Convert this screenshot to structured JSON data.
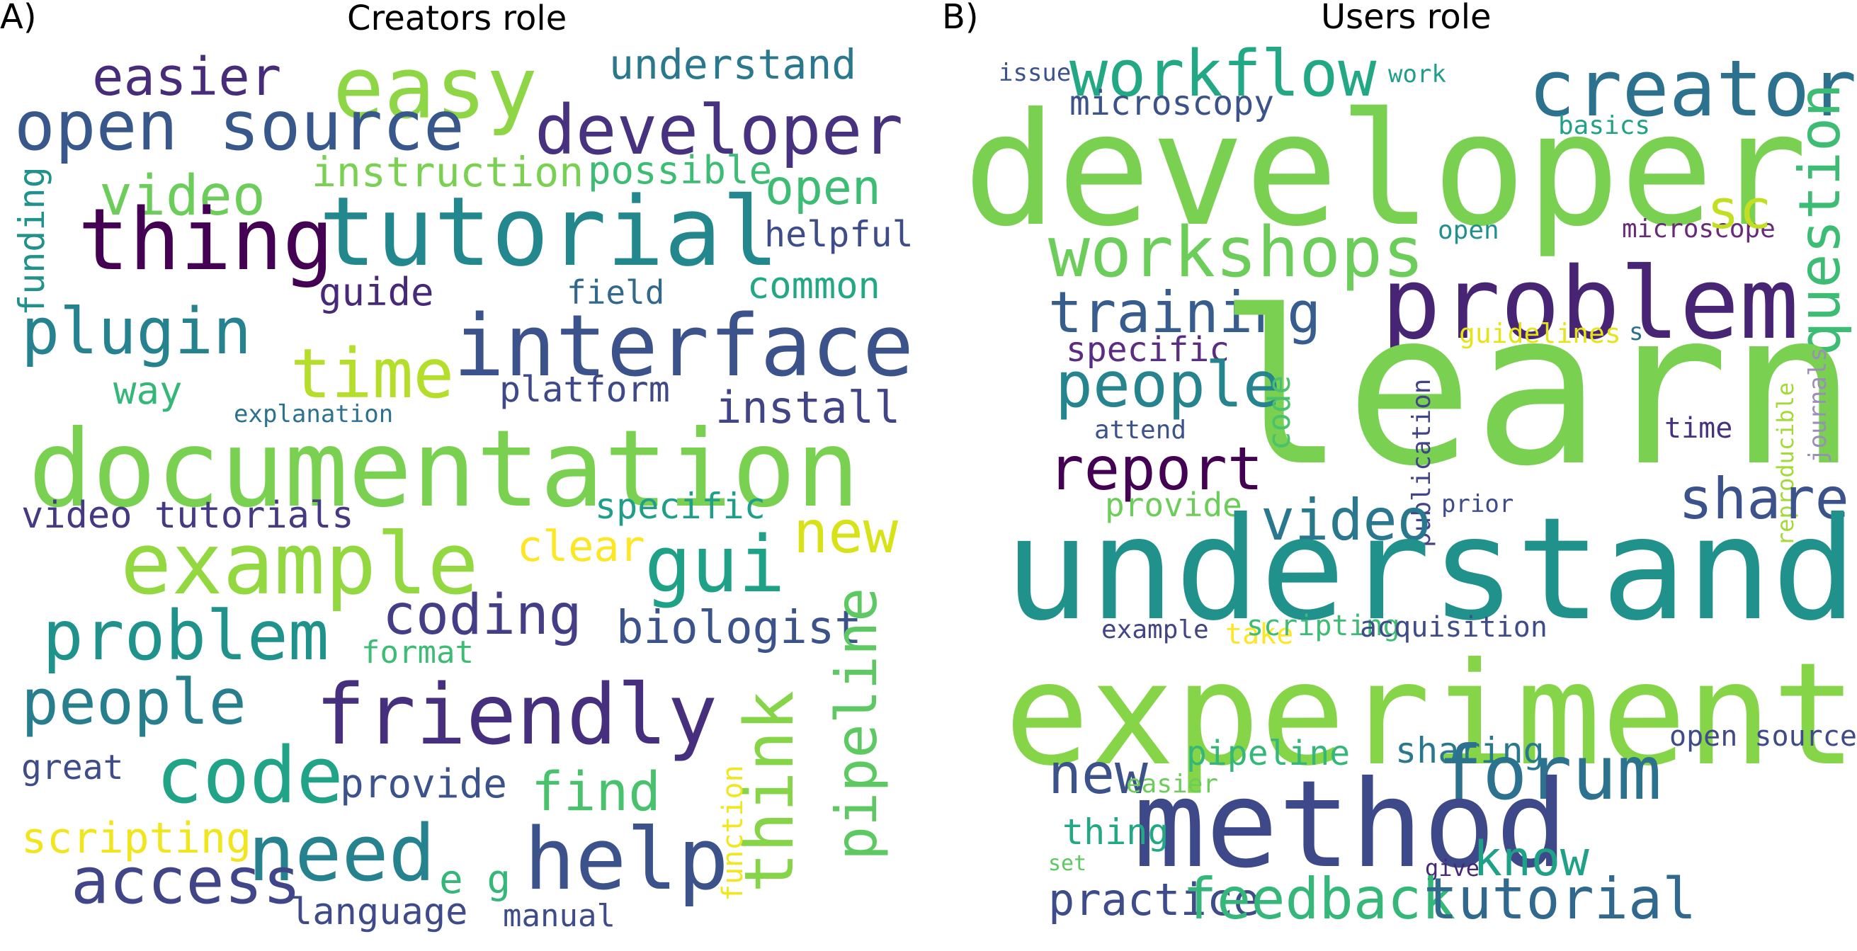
{
  "figure": {
    "panels": [
      {
        "label": "A)",
        "title": "Creators role",
        "words": [
          {
            "text": "easy",
            "color": "#8ed645"
          },
          {
            "text": "easier",
            "color": "#472c7a"
          },
          {
            "text": "understand",
            "color": "#2a788e"
          },
          {
            "text": "open source",
            "color": "#38588c"
          },
          {
            "text": "developer",
            "color": "#46327e"
          },
          {
            "text": "funding",
            "color": "#21918c"
          },
          {
            "text": "instruction",
            "color": "#7ad151"
          },
          {
            "text": "possible",
            "color": "#3dbc74"
          },
          {
            "text": "video",
            "color": "#6ccd5a"
          },
          {
            "text": "open",
            "color": "#3dbc74"
          },
          {
            "text": "thing",
            "color": "#440154"
          },
          {
            "text": "tutorial",
            "color": "#23888e"
          },
          {
            "text": "helpful",
            "color": "#3e4c8a"
          },
          {
            "text": "field",
            "color": "#31688e"
          },
          {
            "text": "common",
            "color": "#22a884"
          },
          {
            "text": "guide",
            "color": "#482878"
          },
          {
            "text": "plugin",
            "color": "#26828e"
          },
          {
            "text": "interface",
            "color": "#3b528b"
          },
          {
            "text": "time",
            "color": "#b5de2b"
          },
          {
            "text": "way",
            "color": "#35b779"
          },
          {
            "text": "platform",
            "color": "#3e4989"
          },
          {
            "text": "install",
            "color": "#414487"
          },
          {
            "text": "explanation",
            "color": "#2c728e"
          },
          {
            "text": "documentation",
            "color": "#7ad151"
          },
          {
            "text": "video tutorials",
            "color": "#443983"
          },
          {
            "text": "specific",
            "color": "#1f9e89"
          },
          {
            "text": "new",
            "color": "#d8e219"
          },
          {
            "text": "example",
            "color": "#93d741"
          },
          {
            "text": "clear",
            "color": "#fde725"
          },
          {
            "text": "gui",
            "color": "#1fa187"
          },
          {
            "text": "problem",
            "color": "#20928c"
          },
          {
            "text": "coding",
            "color": "#433e85"
          },
          {
            "text": "biologist",
            "color": "#3b528b"
          },
          {
            "text": "pipeline",
            "color": "#5ec962"
          },
          {
            "text": "format",
            "color": "#3dbc74"
          },
          {
            "text": "people",
            "color": "#277f8e"
          },
          {
            "text": "friendly",
            "color": "#46307e"
          },
          {
            "text": "think",
            "color": "#86d549"
          },
          {
            "text": "function",
            "color": "#f4e61e"
          },
          {
            "text": "code",
            "color": "#20a386"
          },
          {
            "text": "provide",
            "color": "#3b528b"
          },
          {
            "text": "find",
            "color": "#4ac16d"
          },
          {
            "text": "great",
            "color": "#3e4c8a"
          },
          {
            "text": "scripting",
            "color": "#f1e51d"
          },
          {
            "text": "need",
            "color": "#26828e"
          },
          {
            "text": "help",
            "color": "#3b528b"
          },
          {
            "text": "access",
            "color": "#404688"
          },
          {
            "text": "e g",
            "color": "#35b779"
          },
          {
            "text": "language",
            "color": "#3e4a89"
          },
          {
            "text": "manual",
            "color": "#3e4c8a"
          }
        ]
      },
      {
        "label": "B)",
        "title": "Users role",
        "words": [
          {
            "text": "issue",
            "color": "#3b528b"
          },
          {
            "text": "workflow",
            "color": "#22a884"
          },
          {
            "text": "work",
            "color": "#1f9e89"
          },
          {
            "text": "creator",
            "color": "#2c728e"
          },
          {
            "text": "microscopy",
            "color": "#3b528b"
          },
          {
            "text": "basics",
            "color": "#1fa187"
          },
          {
            "text": "developer",
            "color": "#7ad151"
          },
          {
            "text": "open",
            "color": "#21918c"
          },
          {
            "text": "microscope",
            "color": "#6a2a7b"
          },
          {
            "text": "sc",
            "color": "#c2df23"
          },
          {
            "text": "workshops",
            "color": "#6ccd5a"
          },
          {
            "text": "question",
            "color": "#3dbc74"
          },
          {
            "text": "problem",
            "color": "#482475"
          },
          {
            "text": "training",
            "color": "#365d8d"
          },
          {
            "text": "guidelines",
            "color": "#e5e419"
          },
          {
            "text": "s",
            "color": "#2d708e"
          },
          {
            "text": "specific",
            "color": "#5a2d82"
          },
          {
            "text": "learn",
            "color": "#7ad151"
          },
          {
            "text": "people",
            "color": "#25848e"
          },
          {
            "text": "code",
            "color": "#4ac16d"
          },
          {
            "text": "publication",
            "color": "#414487"
          },
          {
            "text": "reproducible",
            "color": "#a2da37"
          },
          {
            "text": "journals",
            "color": "#9a8fb5"
          },
          {
            "text": "attend",
            "color": "#3b528b"
          },
          {
            "text": "time",
            "color": "#46327e"
          },
          {
            "text": "report",
            "color": "#440154"
          },
          {
            "text": "provide",
            "color": "#6ccd5a"
          },
          {
            "text": "prior",
            "color": "#3e4c8a"
          },
          {
            "text": "video",
            "color": "#2a788e"
          },
          {
            "text": "share",
            "color": "#3b528b"
          },
          {
            "text": "understand",
            "color": "#21918c"
          },
          {
            "text": "example",
            "color": "#414487"
          },
          {
            "text": "take",
            "color": "#fde725"
          },
          {
            "text": "scripting",
            "color": "#3dbc74"
          },
          {
            "text": "acquisition",
            "color": "#3e4c8a"
          },
          {
            "text": "experiment",
            "color": "#86d549"
          },
          {
            "text": "open source",
            "color": "#3e4a89"
          },
          {
            "text": "pipeline",
            "color": "#35b779"
          },
          {
            "text": "sharing",
            "color": "#2a788e"
          },
          {
            "text": "new",
            "color": "#3b528b"
          },
          {
            "text": "forum",
            "color": "#2c728e"
          },
          {
            "text": "easier",
            "color": "#6ccd5a"
          },
          {
            "text": "method",
            "color": "#3e4989"
          },
          {
            "text": "thing",
            "color": "#22a884"
          },
          {
            "text": "set",
            "color": "#5ec962"
          },
          {
            "text": "give",
            "color": "#482878"
          },
          {
            "text": "know",
            "color": "#1fa187"
          },
          {
            "text": "practice",
            "color": "#3e4c8a"
          },
          {
            "text": "feedback",
            "color": "#35b779"
          },
          {
            "text": "tutorial",
            "color": "#31688e"
          }
        ]
      }
    ]
  }
}
